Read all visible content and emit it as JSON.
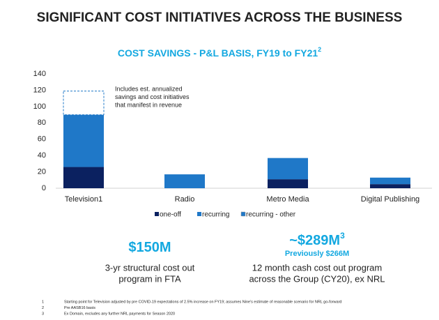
{
  "header": {
    "title": "SIGNIFICANT COST INITIATIVES ACROSS THE BUSINESS"
  },
  "chart_data": {
    "type": "stacked-bar",
    "title": "COST SAVINGS - P&L BASIS, FY19 to FY21",
    "title_superscript": "2",
    "categories": [
      "Television1",
      "Radio",
      "Metro Media",
      "Digital Publishing"
    ],
    "series": [
      {
        "name": "one-off",
        "color": "#0b2160",
        "values": [
          26,
          0,
          11,
          5
        ]
      },
      {
        "name": "recurring",
        "color": "#1f78c8",
        "values": [
          64,
          17,
          26,
          8
        ]
      },
      {
        "name": "recurring - other",
        "color": "#1f78c8",
        "values": [
          29,
          0,
          0,
          0
        ]
      }
    ],
    "ylim": [
      0,
      140
    ],
    "yticks": [
      0,
      20,
      40,
      60,
      80,
      100,
      120,
      140
    ],
    "annotation": [
      "Includes est. annualized",
      "savings and cost initiatives",
      "that manifest in revenue"
    ],
    "legend": "bottom"
  },
  "highlights": [
    {
      "value": "$150M",
      "lines": [
        "3-yr structural cost out",
        "program in FTA"
      ]
    },
    {
      "value": "~$289M",
      "superscript": "3",
      "note": "Previously $266M",
      "lines": [
        "12 month cash cost out program",
        "across the Group (CY20), ex NRL"
      ]
    }
  ],
  "footnotes": [
    {
      "number": "1",
      "text": "Starting point for Television adjusted by pre COVID-19 expectations of 2.5% increase on FY19; assumes Nine's estimate of reasonable scenario for NRL go-forward"
    },
    {
      "number": "2",
      "text": "Pre AASB16 basis"
    },
    {
      "number": "3",
      "text": "Ex Domain, excludes any further NRL payments for Season 2020"
    }
  ]
}
